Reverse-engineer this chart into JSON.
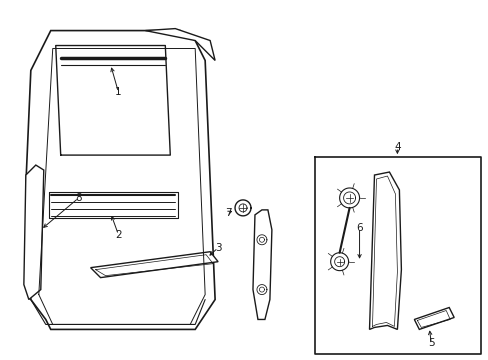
{
  "background_color": "#ffffff",
  "line_color": "#1a1a1a",
  "line_width": 1.0,
  "figure_width": 4.89,
  "figure_height": 3.6,
  "dpi": 100,
  "label_fontsize": 7.5
}
